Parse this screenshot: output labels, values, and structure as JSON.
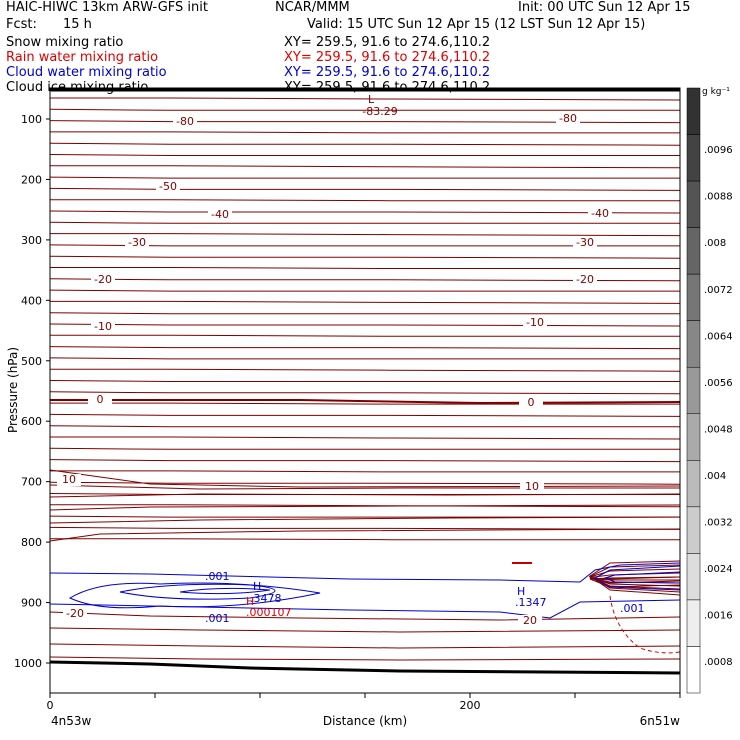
{
  "header": {
    "model": "HAIC-HIWC 13km ARW-GFS init",
    "org": "NCAR/MMM",
    "init": "Init: 00 UTC Sun 12 Apr 15",
    "fcst_label": "Fcst:",
    "fcst_value": "15 h",
    "valid": "Valid: 15 UTC Sun 12 Apr 15 (12 LST Sun 12 Apr 15)",
    "fields": [
      {
        "name": "Snow mixing ratio",
        "xy": "XY= 259.5, 91.6 to 274.6,110.2",
        "color": "#000000"
      },
      {
        "name": "Rain water mixing ratio",
        "xy": "XY= 259.5, 91.6 to 274.6,110.2",
        "color": "#e00000"
      },
      {
        "name": "Cloud water mixing ratio",
        "xy": "XY= 259.5, 91.6 to 274.6,110.2",
        "color": "#0000d0"
      },
      {
        "name": "Cloud ice mixing ratio",
        "xy": "XY= 259.5, 91.6 to 274.6,110.2",
        "color": "#000000"
      }
    ]
  },
  "chart_data": {
    "type": "contour",
    "xlabel": "Distance (km)",
    "ylabel": "Pressure (hPa)",
    "xlim": [
      0,
      300
    ],
    "ylim": [
      1050,
      70
    ],
    "xticks": [
      0,
      200
    ],
    "yticks": [
      100,
      200,
      300,
      400,
      500,
      600,
      700,
      800,
      900,
      1000
    ],
    "end_labels": {
      "left": "4n53w",
      "right": "6n51w"
    },
    "colorbar": {
      "unit": "g kg⁻¹",
      "ticks": [
        ".0096",
        ".0088",
        ".008",
        ".0072",
        ".0064",
        ".0056",
        ".0048",
        ".004",
        ".0032",
        ".0024",
        ".0016",
        ".0008"
      ]
    },
    "temperature_labels": [
      "-80",
      "-80",
      "-50",
      "-40",
      "-40",
      "-30",
      "-30",
      "-20",
      "-20",
      "-10",
      "-10",
      "0",
      "0",
      "10",
      "10",
      "-20",
      "20"
    ],
    "extrema": [
      {
        "type": "L",
        "value": "-83.29"
      },
      {
        "type": "H",
        "value": ".3478",
        "color": "#0000d0"
      },
      {
        "type": "H",
        "value": ".000107",
        "color": "#e00000"
      },
      {
        "type": "H",
        "value": ".1347",
        "color": "#0000d0"
      }
    ],
    "cloud_water_labels": [
      ".001",
      ".001",
      ".001"
    ],
    "colors": {
      "temperature": "#800000",
      "cloud_water": "#0000d0",
      "rain": "#e00000",
      "terrain": "#000000"
    }
  }
}
